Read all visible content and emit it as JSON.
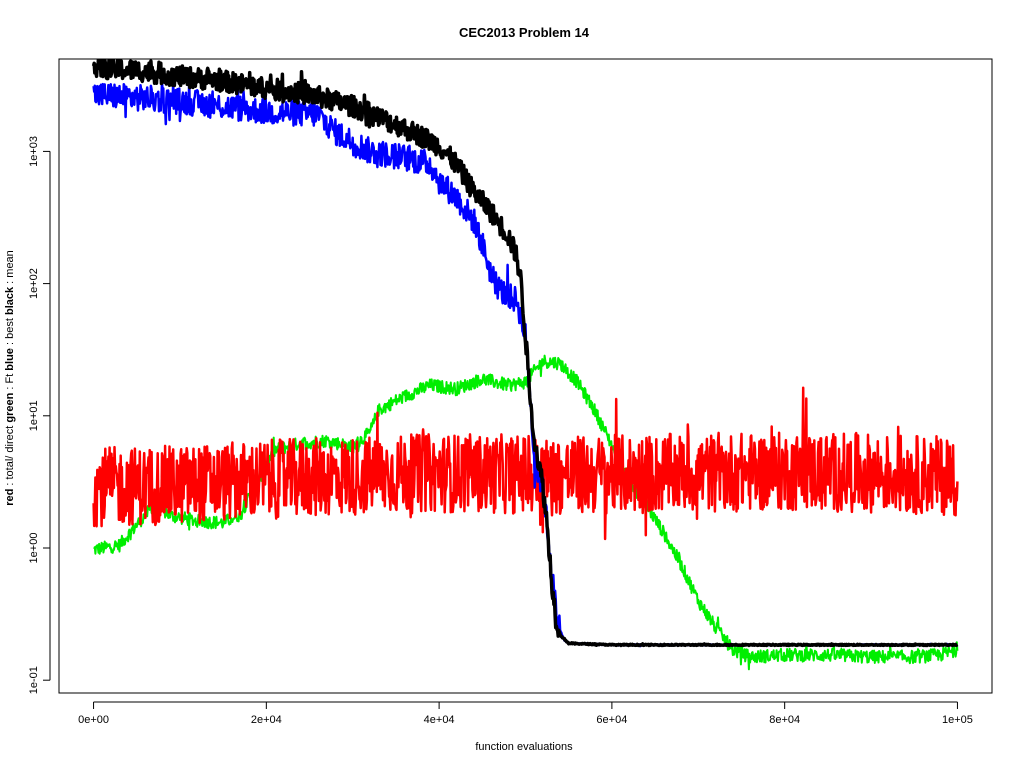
{
  "chart_data": {
    "type": "line",
    "title": "CEC2013 Problem  14",
    "xlabel": "function evaluations",
    "ylabel_parts": [
      {
        "text": "red",
        "bold": true
      },
      {
        "text": " : total/ direct ",
        "bold": false
      },
      {
        "text": "green",
        "bold": true
      },
      {
        "text": " : Ft ",
        "bold": false
      },
      {
        "text": "blue",
        "bold": true
      },
      {
        "text": " : best ",
        "bold": false
      },
      {
        "text": "black",
        "bold": true
      },
      {
        "text": " : mean",
        "bold": false
      }
    ],
    "x_scale": "linear",
    "y_scale": "log",
    "xlim": [
      -4000,
      104000
    ],
    "ylim": [
      0.08,
      5000
    ],
    "x_ticks": [
      {
        "value": 0,
        "label": "0e+00"
      },
      {
        "value": 20000,
        "label": "2e+04"
      },
      {
        "value": 40000,
        "label": "4e+04"
      },
      {
        "value": 60000,
        "label": "6e+04"
      },
      {
        "value": 80000,
        "label": "8e+04"
      },
      {
        "value": 100000,
        "label": "1e+05"
      }
    ],
    "y_ticks": [
      {
        "value": 0.1,
        "label": "1e-01"
      },
      {
        "value": 1,
        "label": "1e+00"
      },
      {
        "value": 10,
        "label": "1e+01"
      },
      {
        "value": 100,
        "label": "1e+02"
      },
      {
        "value": 1000,
        "label": "1e+03"
      }
    ],
    "grid": false,
    "legend": "none",
    "series": [
      {
        "color": "#00ee00",
        "width": 2,
        "noise": 0.05,
        "points": [
          [
            0,
            0.97
          ],
          [
            3000,
            1.05
          ],
          [
            5000,
            1.5
          ],
          [
            7000,
            2.1
          ],
          [
            9000,
            1.75
          ],
          [
            12000,
            1.6
          ],
          [
            15000,
            1.55
          ],
          [
            17000,
            1.8
          ],
          [
            19000,
            3.2
          ],
          [
            21000,
            5.5
          ],
          [
            24000,
            6.2
          ],
          [
            27000,
            6.5
          ],
          [
            30000,
            5.8
          ],
          [
            32000,
            7.5
          ],
          [
            33000,
            11
          ],
          [
            35000,
            13
          ],
          [
            37000,
            15
          ],
          [
            39000,
            17
          ],
          [
            42000,
            16
          ],
          [
            45000,
            19
          ],
          [
            48000,
            17
          ],
          [
            50000,
            18
          ],
          [
            52000,
            26
          ],
          [
            54000,
            25
          ],
          [
            56000,
            18
          ],
          [
            58000,
            11
          ],
          [
            60000,
            6
          ],
          [
            62000,
            3.2
          ],
          [
            64000,
            2.1
          ],
          [
            66000,
            1.3
          ],
          [
            68000,
            0.75
          ],
          [
            70000,
            0.4
          ],
          [
            72000,
            0.25
          ],
          [
            74000,
            0.17
          ],
          [
            76000,
            0.15
          ],
          [
            80000,
            0.155
          ],
          [
            85000,
            0.155
          ],
          [
            90000,
            0.15
          ],
          [
            95000,
            0.15
          ],
          [
            98000,
            0.155
          ],
          [
            100000,
            0.17
          ]
        ]
      },
      {
        "color": "#ff0000",
        "width": 2.5,
        "noise": 0.3,
        "points": [
          [
            0,
            2.9
          ],
          [
            10000,
            3.0
          ],
          [
            20000,
            3.3
          ],
          [
            30000,
            3.5
          ],
          [
            40000,
            3.7
          ],
          [
            50000,
            3.6
          ],
          [
            52000,
            3.5
          ],
          [
            60000,
            3.6
          ],
          [
            70000,
            3.7
          ],
          [
            80000,
            3.8
          ],
          [
            90000,
            3.7
          ],
          [
            100000,
            3.5
          ]
        ]
      },
      {
        "color": "#0000ff",
        "width": 2.5,
        "noise": 0.1,
        "points": [
          [
            0,
            2700
          ],
          [
            10000,
            2400
          ],
          [
            20000,
            2000
          ],
          [
            26000,
            1900
          ],
          [
            28000,
            1400
          ],
          [
            32000,
            1000
          ],
          [
            36000,
            900
          ],
          [
            39000,
            800
          ],
          [
            40000,
            600
          ],
          [
            42000,
            450
          ],
          [
            44000,
            300
          ],
          [
            45000,
            200
          ],
          [
            46000,
            120
          ],
          [
            47000,
            90
          ],
          [
            48000,
            80
          ],
          [
            49000,
            75
          ],
          [
            50000,
            40
          ],
          [
            50500,
            15
          ],
          [
            51000,
            5
          ],
          [
            51500,
            3.5
          ],
          [
            52000,
            3
          ],
          [
            52500,
            1.5
          ],
          [
            53000,
            0.7
          ],
          [
            53500,
            0.35
          ],
          [
            54000,
            0.24
          ],
          [
            54500,
            0.2
          ],
          [
            55000,
            0.19
          ],
          [
            60000,
            0.185
          ],
          [
            70000,
            0.185
          ],
          [
            80000,
            0.185
          ],
          [
            90000,
            0.185
          ],
          [
            100000,
            0.185
          ]
        ]
      },
      {
        "color": "#000000",
        "width": 3.5,
        "noise": 0.08,
        "points": [
          [
            0,
            4300
          ],
          [
            5000,
            4100
          ],
          [
            10000,
            3700
          ],
          [
            15000,
            3400
          ],
          [
            20000,
            3000
          ],
          [
            25000,
            2700
          ],
          [
            30000,
            2200
          ],
          [
            35000,
            1600
          ],
          [
            38000,
            1300
          ],
          [
            40000,
            1100
          ],
          [
            42000,
            800
          ],
          [
            44000,
            500
          ],
          [
            46000,
            350
          ],
          [
            48000,
            230
          ],
          [
            49000,
            160
          ],
          [
            49500,
            100
          ],
          [
            50000,
            40
          ],
          [
            50500,
            15
          ],
          [
            51000,
            7
          ],
          [
            51500,
            4.5
          ],
          [
            52000,
            3
          ],
          [
            52500,
            1.5
          ],
          [
            53000,
            0.6
          ],
          [
            53500,
            0.3
          ],
          [
            54000,
            0.22
          ],
          [
            55000,
            0.19
          ],
          [
            60000,
            0.185
          ],
          [
            70000,
            0.185
          ],
          [
            80000,
            0.185
          ],
          [
            90000,
            0.185
          ],
          [
            100000,
            0.185
          ]
        ]
      }
    ]
  }
}
